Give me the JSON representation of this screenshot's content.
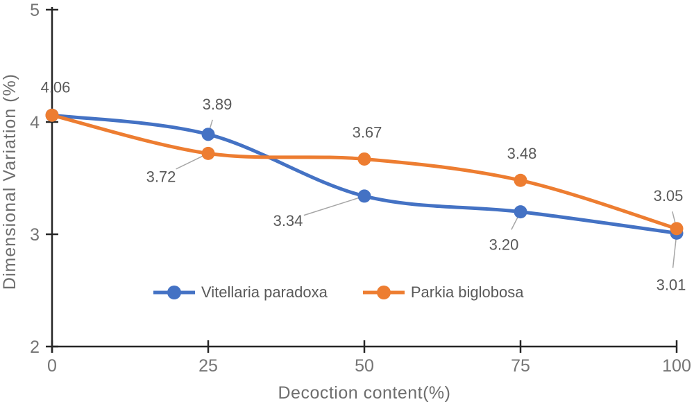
{
  "chart_data": {
    "type": "line",
    "title": "",
    "xlabel": "Decoction content(%)",
    "ylabel": "Dimensional Variation (%)",
    "x": [
      0,
      25,
      50,
      75,
      100
    ],
    "xlim": [
      0,
      100
    ],
    "ylim": [
      2,
      5
    ],
    "xticks": [
      "0",
      "25",
      "50",
      "75",
      "100"
    ],
    "yticks": [
      "2",
      "3",
      "4",
      "5"
    ],
    "grid": false,
    "legend_position": "bottom-center-inside-plot",
    "axis_color": "#262626",
    "tick_label_color": "#757575",
    "data_label_color": "#595959",
    "leader_line_color": "#a6a6a6",
    "series": [
      {
        "name": "Vitellaria paradoxa",
        "color": "#4472C4",
        "values": [
          4.06,
          3.89,
          3.34,
          3.2,
          3.01
        ],
        "labels": [
          {
            "text": "4.06",
            "dx": 5,
            "dy": -41,
            "leader": false
          },
          {
            "text": "3.89",
            "dx": 13,
            "dy": -44,
            "leader": true
          },
          {
            "text": "3.34",
            "dx": -110,
            "dy": 35,
            "leader": true
          },
          {
            "text": "3.20",
            "dx": -24,
            "dy": 47,
            "leader": true
          },
          {
            "text": "3.01",
            "dx": -8,
            "dy": 74,
            "leader": true
          }
        ]
      },
      {
        "name": "Parkia biglobosa",
        "color": "#ED7D31",
        "values": [
          4.06,
          3.72,
          3.67,
          3.48,
          3.05
        ],
        "labels": [
          null,
          {
            "text": "3.72",
            "dx": -68,
            "dy": 33,
            "leader": true
          },
          {
            "text": "3.67",
            "dx": 4,
            "dy": -39,
            "leader": false
          },
          {
            "text": "3.48",
            "dx": 2,
            "dy": -39,
            "leader": false
          },
          {
            "text": "3.05",
            "dx": -12,
            "dy": -48,
            "leader": true
          }
        ]
      }
    ]
  }
}
